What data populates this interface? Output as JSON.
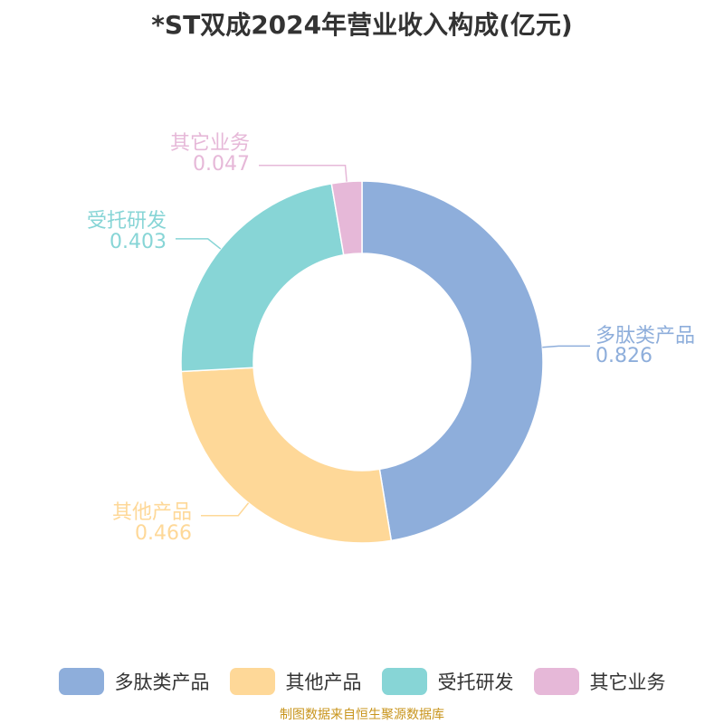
{
  "title": "*ST双成2024年营业收入构成(亿元)",
  "source": "制图数据来自恒生聚源数据库",
  "colors": {
    "多肽类产品": "#8eaedb",
    "其他产品": "#fed898",
    "受托研发": "#87d5d6",
    "其它业务": "#e6b8d8"
  },
  "chart_data": {
    "type": "pie",
    "donut": true,
    "title": "*ST双成2024年营业收入构成(亿元)",
    "labels": [
      "多肽类产品",
      "其他产品",
      "受托研发",
      "其它业务"
    ],
    "values": [
      0.826,
      0.466,
      0.403,
      0.047
    ],
    "value_labels": [
      "0.826",
      "0.466",
      "0.403",
      "0.047"
    ],
    "legend_position": "bottom"
  }
}
